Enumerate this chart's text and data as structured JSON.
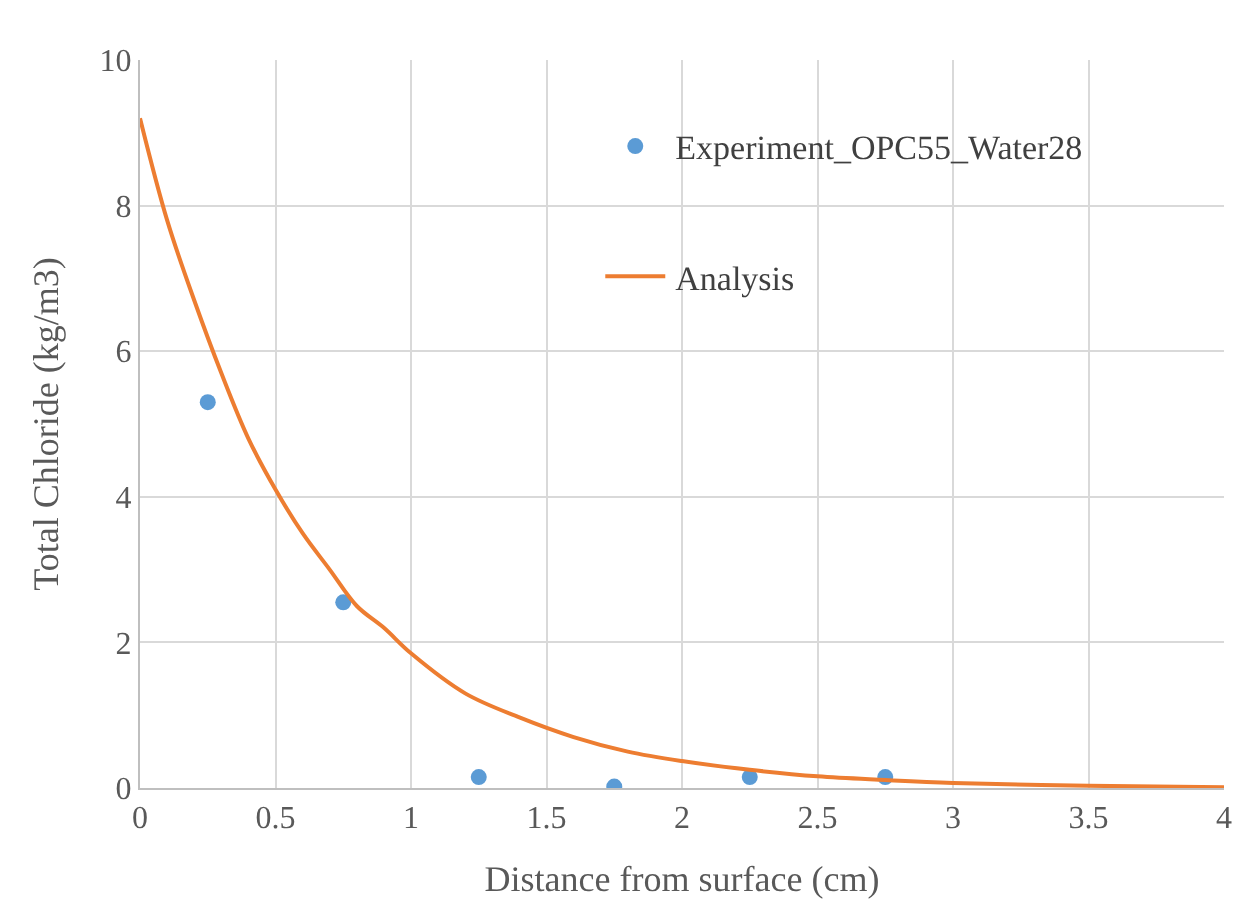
{
  "chart_data": {
    "type": "scatter",
    "xlabel": "Distance from surface (cm)",
    "ylabel": "Total Chloride (kg/m3)",
    "xlim": [
      0,
      4
    ],
    "xticks": [
      0,
      0.5,
      1,
      1.5,
      2,
      2.5,
      3,
      3.5,
      4
    ],
    "ylim": [
      0,
      10
    ],
    "yticks": [
      0,
      2,
      4,
      6,
      8,
      10
    ],
    "grid": true,
    "legend": "top right",
    "series": [
      {
        "name": "Experiment_OPC55_Water28",
        "marker": "circle",
        "color": "#5b9bd5",
        "x": [
          0.25,
          0.75,
          1.25,
          1.75,
          2.25,
          2.75
        ],
        "values": [
          5.3,
          2.55,
          0.15,
          0.02,
          0.15,
          0.15
        ]
      },
      {
        "name": "Analysis",
        "type": "line",
        "marker": "none",
        "line_style": "solid",
        "color": "#ed7d31",
        "x": [
          0,
          0.1,
          0.2,
          0.3,
          0.4,
          0.5,
          0.6,
          0.7,
          0.8,
          0.9,
          1.0,
          1.2,
          1.4,
          1.6,
          1.8,
          2.0,
          2.25,
          2.5,
          2.75,
          3.0,
          3.5,
          4.0
        ],
        "values": [
          9.2,
          7.8,
          6.7,
          5.7,
          4.8,
          4.1,
          3.5,
          3.0,
          2.5,
          2.2,
          1.85,
          1.3,
          0.97,
          0.7,
          0.5,
          0.37,
          0.25,
          0.16,
          0.11,
          0.07,
          0.03,
          0.01
        ]
      }
    ]
  }
}
